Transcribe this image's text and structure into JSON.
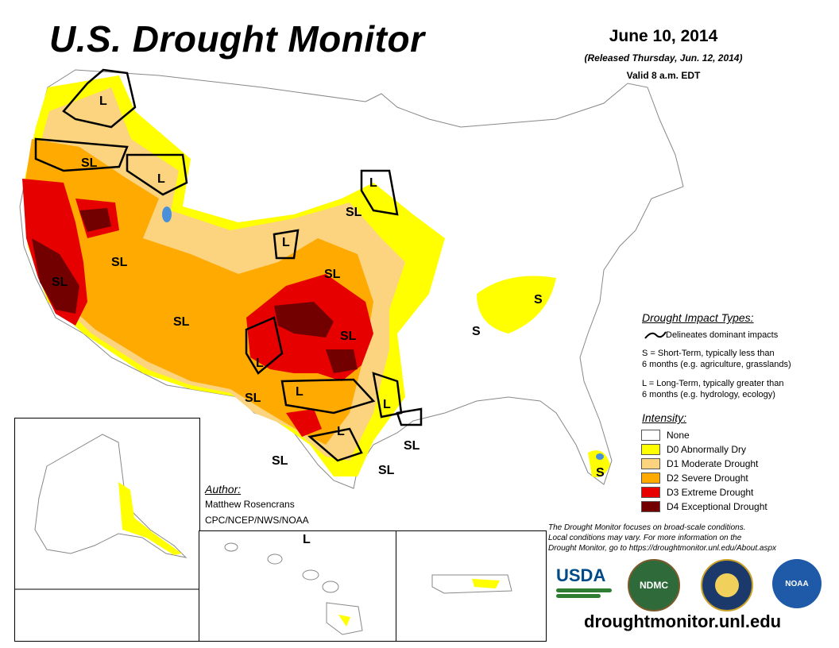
{
  "header": {
    "title": "U.S. Drought Monitor",
    "date": "June 10, 2014",
    "released": "(Released Thursday, Jun. 12, 2014)",
    "valid": "Valid 8 a.m. EDT"
  },
  "impact_legend": {
    "title": "Drought Impact Types:",
    "delineates": "Delineates dominant impacts",
    "short_term": "S = Short-Term, typically less than",
    "short_term_2": "6 months (e.g. agriculture, grasslands)",
    "long_term": "L = Long-Term, typically greater than",
    "long_term_2": "6 months (e.g. hydrology, ecology)"
  },
  "intensity_legend": {
    "title": "Intensity:",
    "items": [
      {
        "label": "None",
        "color": "#ffffff"
      },
      {
        "label": "D0 Abnormally Dry",
        "color": "#ffff00"
      },
      {
        "label": "D1 Moderate Drought",
        "color": "#fcd37f"
      },
      {
        "label": "D2 Severe Drought",
        "color": "#ffaa00"
      },
      {
        "label": "D3 Extreme Drought",
        "color": "#e60000"
      },
      {
        "label": "D4 Exceptional Drought",
        "color": "#730000"
      }
    ]
  },
  "author": {
    "heading": "Author:",
    "name": "Matthew Rosencrans",
    "org": "CPC/NCEP/NWS/NOAA"
  },
  "note": {
    "line1": "The Drought Monitor focuses on broad-scale conditions.",
    "line2": "Local conditions may vary. For more information on the",
    "line3": "Drought Monitor, go to https://droughtmonitor.unl.edu/About.aspx"
  },
  "logos": {
    "usda": "USDA",
    "ndmc": "NDMC",
    "noaa": "NOAA"
  },
  "url": "droughtmonitor.unl.edu",
  "map_labels": {
    "sl": "SL",
    "l": "L",
    "s": "S"
  },
  "colors": {
    "none": "#ffffff",
    "d0": "#ffff00",
    "d1": "#fcd37f",
    "d2": "#ffaa00",
    "d3": "#e60000",
    "d4": "#730000",
    "water": "#4a90d9",
    "border": "#b0b0b0"
  }
}
